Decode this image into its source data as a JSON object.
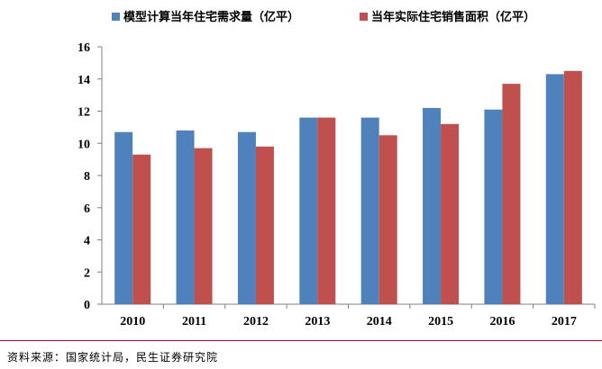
{
  "chart_data": {
    "type": "bar",
    "categories": [
      "2010",
      "2011",
      "2012",
      "2013",
      "2014",
      "2015",
      "2016",
      "2017"
    ],
    "series": [
      {
        "name": "模型计算当年住宅需求量（亿平）",
        "color": "#4f81bd",
        "values": [
          10.7,
          10.8,
          10.7,
          11.6,
          11.6,
          12.2,
          12.1,
          14.3
        ]
      },
      {
        "name": "当年实际住宅销售面积（亿平）",
        "color": "#c0504d",
        "values": [
          9.3,
          9.7,
          9.8,
          11.6,
          10.5,
          11.2,
          13.7,
          14.5
        ]
      }
    ],
    "yticks": [
      "0",
      "2",
      "4",
      "6",
      "8",
      "10",
      "12",
      "14",
      "16"
    ],
    "ylim": [
      0,
      16
    ],
    "legend_position": "top",
    "grid": false
  },
  "source": "资料来源：国家统计局，民生证券研究院"
}
